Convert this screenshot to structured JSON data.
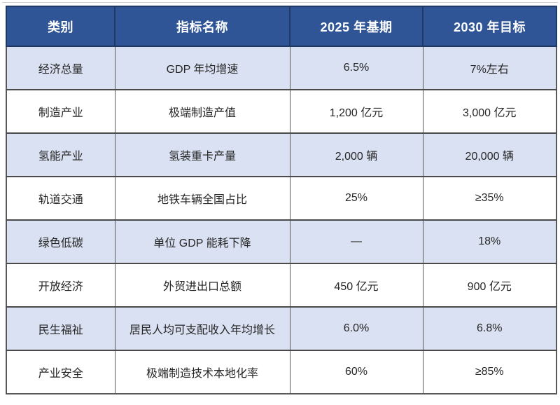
{
  "colors": {
    "header_bg": "#2F5597",
    "header_border": "#1F3864",
    "header_text": "#FFFFFF",
    "row_alt_bg": "#D9E1F2",
    "row_bg": "#FFFFFF",
    "grid_line": "#595959",
    "body_text": "#262626",
    "top_rule": "#CFCFCF"
  },
  "chart_data": {
    "type": "table",
    "title": "",
    "columns": [
      "类别",
      "指标名称",
      "2025 年基期",
      "2030 年目标"
    ],
    "rows": [
      [
        "经济总量",
        "GDP 年均增速",
        "6.5%",
        "7%左右"
      ],
      [
        "制造产业",
        "极端制造产值",
        "1,200 亿元",
        "3,000 亿元"
      ],
      [
        "氢能产业",
        "氢装重卡产量",
        "2,000 辆",
        "20,000 辆"
      ],
      [
        "轨道交通",
        "地铁车辆全国占比",
        "25%",
        "≥35%"
      ],
      [
        "绿色低碳",
        "单位 GDP 能耗下降",
        "—",
        "18%"
      ],
      [
        "开放经济",
        "外贸进出口总额",
        "450 亿元",
        "900 亿元"
      ],
      [
        "民生福祉",
        "居民人均可支配收入年均增长",
        "6.0%",
        "6.8%"
      ],
      [
        "产业安全",
        "极端制造技术本地化率",
        "60%",
        "≥85%"
      ]
    ],
    "layout": {
      "striped": true,
      "stripe_rows": "odd",
      "header_style": "dark-blue",
      "alignment": "center"
    }
  }
}
